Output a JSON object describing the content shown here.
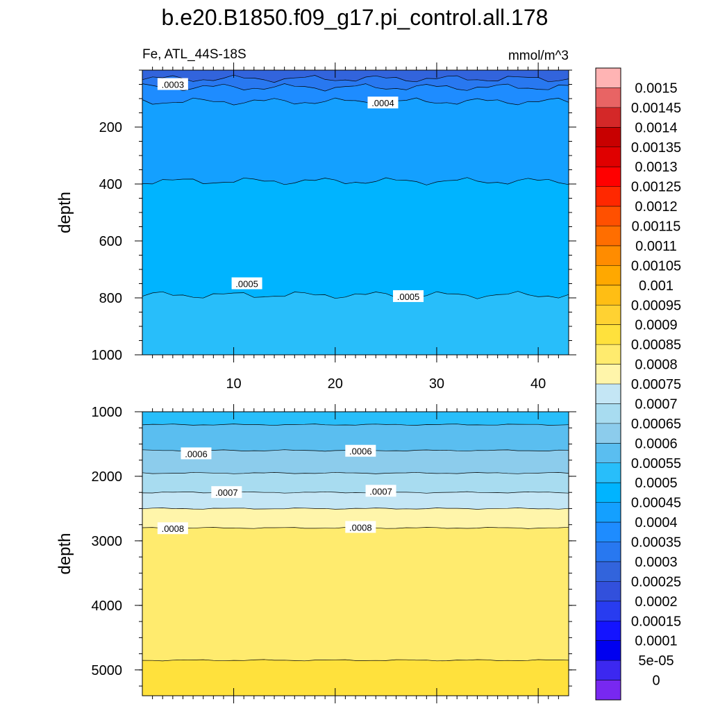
{
  "title": "b.e20.B1850.f09_g17.pi_control.all.178",
  "subtitle_left": "Fe, ATL_44S-18S",
  "subtitle_right": "mmol/m^3",
  "chart_data": [
    {
      "type": "contour",
      "panel": "upper",
      "xlabel": "",
      "ylabel": "depth",
      "xlim": [
        1,
        43
      ],
      "ylim": [
        1000,
        0
      ],
      "xticks": [
        10,
        20,
        30,
        40
      ],
      "yticks": [
        200,
        400,
        600,
        800,
        1000
      ],
      "x_tick_labels": [
        "10",
        "20",
        "30",
        "40"
      ],
      "y_tick_labels": [
        "200",
        "400",
        "600",
        "800",
        "1000"
      ],
      "bands": [
        {
          "from_depth": 0,
          "to_depth": 30,
          "value_range": [
            0.00025,
            0.0003
          ]
        },
        {
          "from_depth": 30,
          "to_depth": 60,
          "value_range": [
            0.0003,
            0.00035
          ]
        },
        {
          "from_depth": 60,
          "to_depth": 110,
          "value_range": [
            0.00035,
            0.0004
          ]
        },
        {
          "from_depth": 110,
          "to_depth": 390,
          "value_range": [
            0.0004,
            0.00045
          ]
        },
        {
          "from_depth": 390,
          "to_depth": 790,
          "value_range": [
            0.00045,
            0.0005
          ]
        },
        {
          "from_depth": 790,
          "to_depth": 1000,
          "value_range": [
            0.0005,
            0.00055
          ]
        }
      ],
      "contour_lines": [
        {
          "level": 0.0003,
          "depth": 30
        },
        {
          "level": 0.00035,
          "depth": 60
        },
        {
          "level": 0.0004,
          "depth": 110
        },
        {
          "level": 0.00045,
          "depth": 390
        },
        {
          "level": 0.0005,
          "depth": 790
        }
      ],
      "contour_labels": [
        {
          "text": ".0003",
          "x": 4,
          "depth": 50
        },
        {
          "text": ".0004",
          "x": 24.7,
          "depth": 115
        },
        {
          "text": ".0005",
          "x": 11.3,
          "depth": 750
        },
        {
          "text": ".0005",
          "x": 27.2,
          "depth": 795
        }
      ]
    },
    {
      "type": "contour",
      "panel": "lower",
      "xlabel": "",
      "ylabel": "depth",
      "xlim": [
        1,
        43
      ],
      "ylim": [
        5400,
        1000
      ],
      "xticks": [
        10,
        20,
        30,
        40
      ],
      "yticks": [
        1000,
        2000,
        3000,
        4000,
        5000
      ],
      "y_tick_labels": [
        "1000",
        "2000",
        "3000",
        "4000",
        "5000"
      ],
      "bands": [
        {
          "from_depth": 1000,
          "to_depth": 1200,
          "value_range": [
            0.0005,
            0.00055
          ]
        },
        {
          "from_depth": 1200,
          "to_depth": 1600,
          "value_range": [
            0.00055,
            0.0006
          ]
        },
        {
          "from_depth": 1600,
          "to_depth": 1950,
          "value_range": [
            0.0006,
            0.00065
          ]
        },
        {
          "from_depth": 1950,
          "to_depth": 2250,
          "value_range": [
            0.00065,
            0.0007
          ]
        },
        {
          "from_depth": 2250,
          "to_depth": 2500,
          "value_range": [
            0.0007,
            0.00075
          ]
        },
        {
          "from_depth": 2500,
          "to_depth": 2800,
          "value_range": [
            0.00075,
            0.0008
          ]
        },
        {
          "from_depth": 2800,
          "to_depth": 4850,
          "value_range": [
            0.0008,
            0.00085
          ]
        },
        {
          "from_depth": 4850,
          "to_depth": 5400,
          "value_range": [
            0.00085,
            0.0009
          ]
        }
      ],
      "contour_lines": [
        {
          "level": 0.00055,
          "depth": 1200
        },
        {
          "level": 0.0006,
          "depth": 1600
        },
        {
          "level": 0.00065,
          "depth": 1950
        },
        {
          "level": 0.0007,
          "depth": 2250
        },
        {
          "level": 0.00075,
          "depth": 2500
        },
        {
          "level": 0.0008,
          "depth": 2800
        },
        {
          "level": 0.00085,
          "depth": 4850
        }
      ],
      "contour_labels": [
        {
          "text": ".0006",
          "x": 6.3,
          "depth": 1650
        },
        {
          "text": ".0006",
          "x": 22.5,
          "depth": 1610
        },
        {
          "text": ".0007",
          "x": 9.3,
          "depth": 2250
        },
        {
          "text": ".0007",
          "x": 24.5,
          "depth": 2230
        },
        {
          "text": ".0008",
          "x": 4.0,
          "depth": 2810
        },
        {
          "text": ".0008",
          "x": 22.5,
          "depth": 2790
        }
      ]
    }
  ],
  "colorbar": {
    "labels": [
      "0.0015",
      "0.00145",
      "0.0014",
      "0.00135",
      "0.0013",
      "0.00125",
      "0.0012",
      "0.00115",
      "0.0011",
      "0.00105",
      "0.001",
      "0.00095",
      "0.0009",
      "0.00085",
      "0.0008",
      "0.00075",
      "0.0007",
      "0.00065",
      "0.0006",
      "0.00055",
      "0.0005",
      "0.00045",
      "0.0004",
      "0.00035",
      "0.0003",
      "0.00025",
      "0.0002",
      "0.00015",
      "0.0001",
      "5e-05",
      "0"
    ],
    "colors": [
      "#FFB4B4",
      "#E86464",
      "#D42828",
      "#C80000",
      "#E00000",
      "#FF0000",
      "#FF2800",
      "#FF5000",
      "#FF6E00",
      "#FF8C00",
      "#FFA800",
      "#FFBE14",
      "#FFD232",
      "#FFE13C",
      "#FFEB6E",
      "#FFF5AA",
      "#C4E6F5",
      "#A8DCF0",
      "#8CCCEC",
      "#5ABEF0",
      "#28BEFA",
      "#00B4FF",
      "#14A0FF",
      "#1E8CFF",
      "#2878F0",
      "#3264DC",
      "#3250DC",
      "#283CF0",
      "#1414FF",
      "#0000F0",
      "#3C28F0",
      "#7828F0"
    ]
  },
  "colors": {
    "line": "#000000",
    "panel_bg": "#ffffff"
  }
}
